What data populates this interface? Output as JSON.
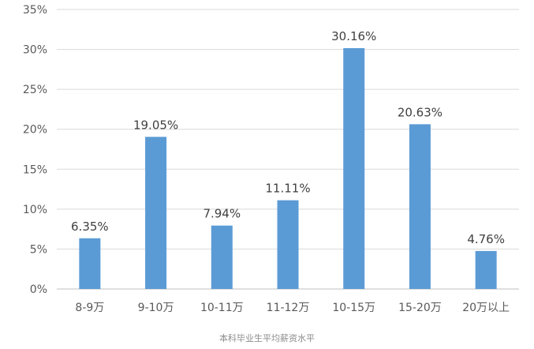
{
  "chart_data": {
    "type": "bar",
    "categories": [
      "8-9万",
      "9-10万",
      "10-11万",
      "11-12万",
      "10-15万",
      "15-20万",
      "20万以上"
    ],
    "values": [
      6.35,
      19.05,
      7.94,
      11.11,
      30.16,
      20.63,
      4.76
    ],
    "data_labels": [
      "6.35%",
      "19.05%",
      "7.94%",
      "11.11%",
      "30.16%",
      "20.63%",
      "4.76%"
    ],
    "y_ticks": [
      "0%",
      "5%",
      "10%",
      "15%",
      "20%",
      "25%",
      "30%",
      "35%"
    ],
    "ylim": [
      0,
      35
    ],
    "grid": true,
    "legend": "none",
    "bar_color": "#5b9bd5",
    "title": "",
    "xlabel": "",
    "ylabel": ""
  },
  "caption": "本科毕业生平均薪资水平"
}
